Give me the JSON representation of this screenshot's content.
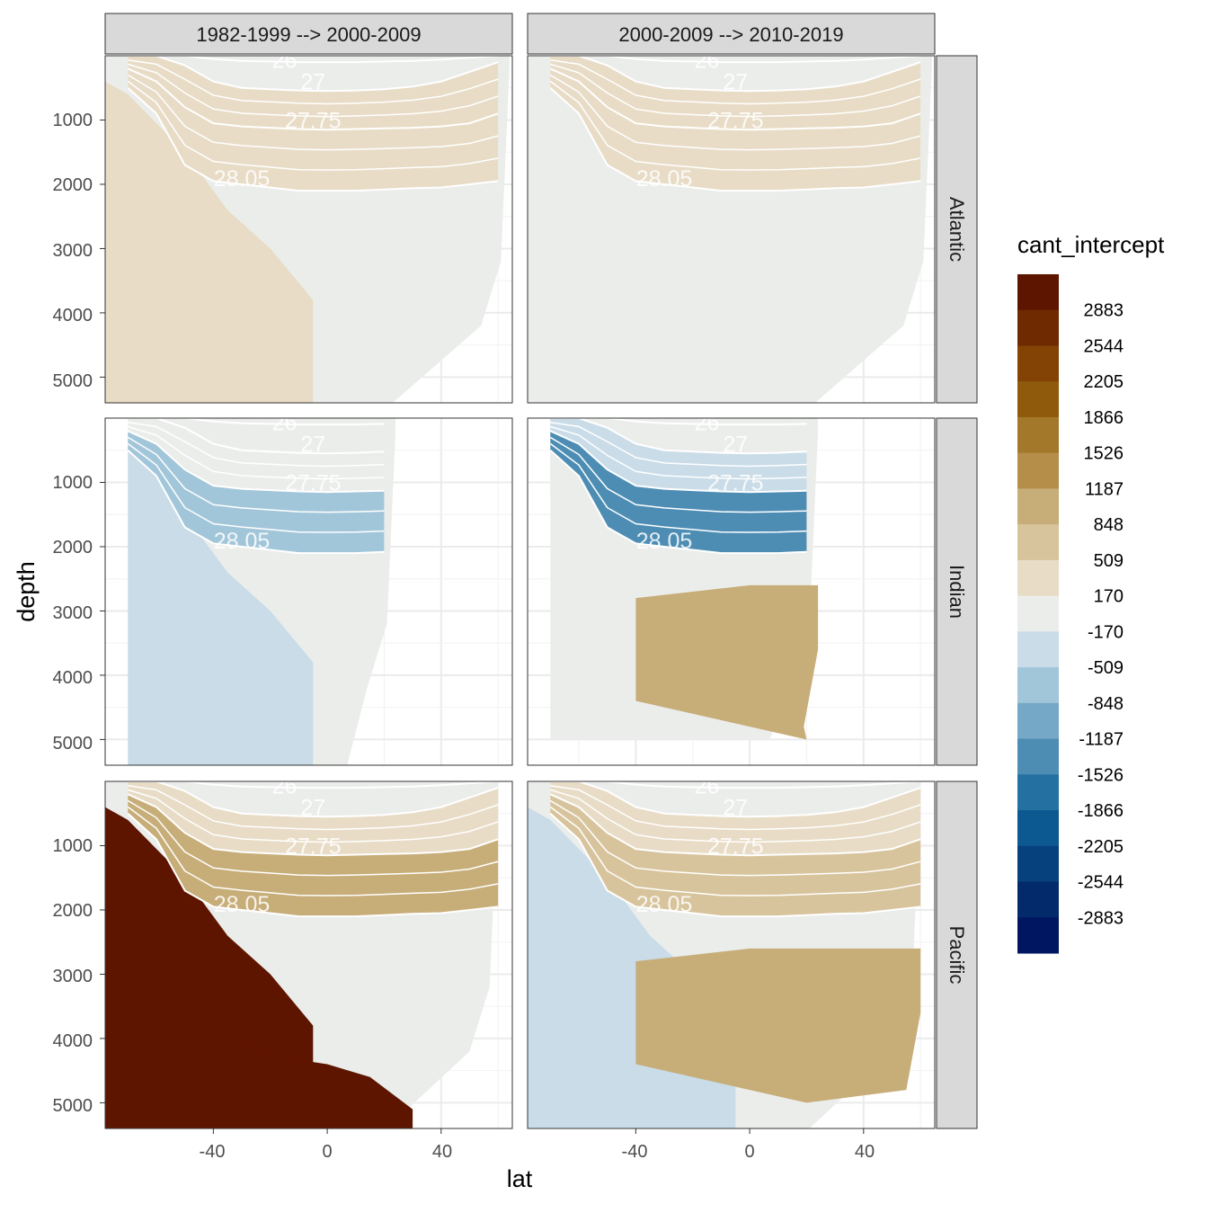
{
  "chart_data": {
    "type": "heatmap",
    "title": "",
    "xlabel": "lat",
    "ylabel": "depth",
    "xlim": [
      -78,
      65
    ],
    "ylim": [
      0,
      5400
    ],
    "x_ticks": [
      -40,
      0,
      40
    ],
    "y_ticks": [
      1000,
      2000,
      3000,
      4000,
      5000
    ],
    "columns": [
      "1982-1999 --> 2000-2009",
      "2000-2009 --> 2010-2019"
    ],
    "rows": [
      "Atlantic",
      "Indian",
      "Pacific"
    ],
    "legend": {
      "title": "cant_intercept",
      "breaks": [
        "2883",
        "2544",
        "2205",
        "1866",
        "1526",
        "1187",
        "848",
        "509",
        "170",
        "-170",
        "-509",
        "-848",
        "-1187",
        "-1526",
        "-1866",
        "-2205",
        "-2544",
        "-2883"
      ],
      "colors": [
        "#5e1500",
        "#6f2a02",
        "#824304",
        "#905a0c",
        "#a4782a",
        "#b58f4a",
        "#c7ad78",
        "#d8c49c",
        "#e8dcc6",
        "#ebedeb",
        "#c9dce8",
        "#a2c6d9",
        "#74a8c6",
        "#4d8db4",
        "#2470a0",
        "#0c5890",
        "#06407d",
        "#032a6b",
        "#001660"
      ]
    },
    "isopycnal_labels": [
      "26",
      "27",
      "27.75",
      "28.05"
    ],
    "isopycnal_depths": [
      {
        "lat": [
          -70,
          -60,
          -50,
          -40,
          -30,
          -20,
          -10,
          0,
          10,
          20,
          30,
          40,
          50,
          60
        ],
        "sigma26": [
          0,
          0,
          0,
          50,
          80,
          90,
          100,
          100,
          100,
          90,
          80,
          60,
          30,
          0
        ],
        "sigma27": [
          0,
          0,
          150,
          400,
          500,
          520,
          540,
          550,
          540,
          520,
          480,
          400,
          250,
          100
        ],
        "sigma27_75": [
          200,
          400,
          800,
          1050,
          1100,
          1120,
          1140,
          1150,
          1140,
          1130,
          1120,
          1100,
          1050,
          900
        ],
        "sigma28_05": [
          500,
          900,
          1700,
          1950,
          2000,
          2050,
          2100,
          2100,
          2100,
          2080,
          2060,
          2050,
          2000,
          1950
        ]
      }
    ],
    "sections": [
      {
        "column": "1982-1999 --> 2000-2009",
        "row": "Atlantic",
        "lat_range": [
          -78,
          64
        ],
        "max_depth": 5400,
        "dominant_values": {
          "upper_1000m": 340,
          "intermediate": 340,
          "deep_south": 340,
          "deep_north": 0
        }
      },
      {
        "column": "2000-2009 --> 2010-2019",
        "row": "Atlantic",
        "lat_range": [
          -78,
          64
        ],
        "max_depth": 5400,
        "dominant_values": {
          "upper_1000m": 340,
          "intermediate": 340,
          "deep_south": 0,
          "deep_north": 0
        }
      },
      {
        "column": "1982-1999 --> 2000-2009",
        "row": "Indian",
        "lat_range": [
          -70,
          24
        ],
        "max_depth": 5400,
        "dominant_values": {
          "upper_1000m": 0,
          "intermediate": -680,
          "deep_south": -340,
          "deep_north": 0
        }
      },
      {
        "column": "2000-2009 --> 2010-2019",
        "row": "Indian",
        "lat_range": [
          -70,
          24
        ],
        "max_depth": 5000,
        "dominant_values": {
          "upper_1000m": -340,
          "intermediate": -1360,
          "deep_south": 0,
          "deep_north": 1018
        }
      },
      {
        "column": "1982-1999 --> 2000-2009",
        "row": "Pacific",
        "lat_range": [
          -78,
          60
        ],
        "max_depth": 5400,
        "dominant_values": {
          "upper_1000m": 340,
          "intermediate": 1018,
          "deep_south": 3050,
          "deep_north": 0
        }
      },
      {
        "column": "2000-2009 --> 2010-2019",
        "row": "Pacific",
        "lat_range": [
          -78,
          60
        ],
        "max_depth": 5400,
        "dominant_values": {
          "upper_1000m": 340,
          "intermediate": 678,
          "deep_south": -340,
          "deep_north": 1018
        }
      }
    ]
  }
}
